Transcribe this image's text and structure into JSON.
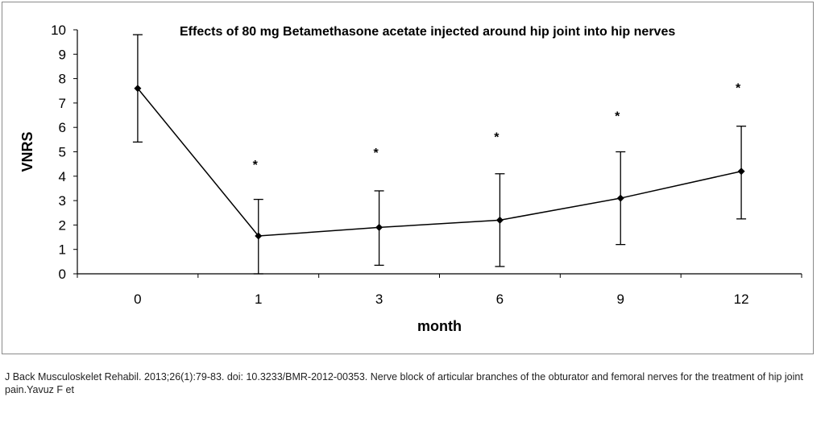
{
  "chart_data": {
    "type": "line",
    "title": "Effects of 80 mg Betamethasone acetate injected around hip joint into hip nerves",
    "xlabel": "month",
    "ylabel": "VNRS",
    "categories": [
      "0",
      "1",
      "3",
      "6",
      "9",
      "12"
    ],
    "ylim": [
      0,
      10
    ],
    "yticks": [
      "0",
      "1",
      "2",
      "3",
      "4",
      "5",
      "6",
      "7",
      "8",
      "9",
      "10"
    ],
    "grid": false,
    "legend": "none",
    "series": [
      {
        "values": [
          7.6,
          1.55,
          1.9,
          2.2,
          3.1,
          4.2
        ],
        "error_low": [
          5.4,
          0.0,
          0.35,
          0.3,
          1.2,
          2.25
        ],
        "error_high": [
          9.8,
          3.05,
          3.4,
          4.1,
          5.0,
          6.05
        ],
        "marker": "diamond",
        "color": "#000000"
      }
    ],
    "annotations": [
      {
        "text": "*",
        "category": "1",
        "y": 4.55
      },
      {
        "text": "*",
        "category": "3",
        "y": 5.05
      },
      {
        "text": "*",
        "category": "6",
        "y": 5.7
      },
      {
        "text": "*",
        "category": "9",
        "y": 6.55
      },
      {
        "text": "*",
        "category": "12",
        "y": 7.7
      }
    ]
  },
  "caption": "J Back Musculoskelet Rehabil. 2013;26(1):79-83. doi: 10.3233/BMR-2012-00353. Nerve block of articular branches of the obturator and femoral nerves for the treatment of hip joint pain.Yavuz F et"
}
